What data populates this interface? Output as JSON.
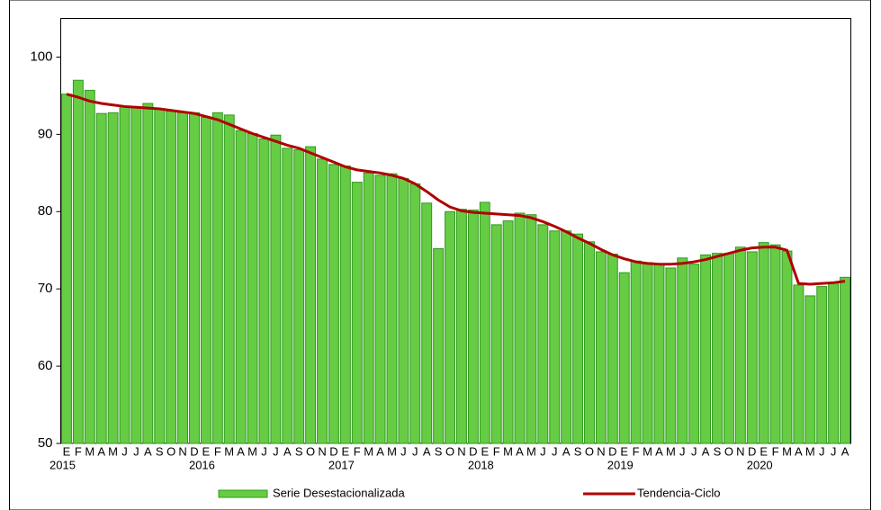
{
  "chart_data": {
    "type": "bar",
    "categories": [
      "E",
      "F",
      "M",
      "A",
      "M",
      "J",
      "J",
      "A",
      "S",
      "O",
      "N",
      "D",
      "E",
      "F",
      "M",
      "A",
      "M",
      "J",
      "J",
      "A",
      "S",
      "O",
      "N",
      "D",
      "E",
      "F",
      "M",
      "A",
      "M",
      "J",
      "J",
      "A",
      "S",
      "O",
      "N",
      "D",
      "E",
      "F",
      "M",
      "A",
      "M",
      "J",
      "J",
      "A",
      "S",
      "O",
      "N",
      "D",
      "E",
      "F",
      "M",
      "A",
      "M",
      "J",
      "J",
      "A",
      "S",
      "O",
      "N",
      "D",
      "E",
      "F",
      "M",
      "A",
      "M",
      "J",
      "J",
      "A"
    ],
    "year_labels": [
      "2015",
      "2016",
      "2017",
      "2018",
      "2019",
      "2020"
    ],
    "series": [
      {
        "name": "Serie Desestacionalizada",
        "type": "bar",
        "color": "#66cc44",
        "values": [
          95.2,
          97.0,
          95.7,
          92.7,
          92.8,
          93.6,
          93.5,
          94.0,
          93.3,
          93.0,
          92.8,
          92.8,
          92.2,
          92.8,
          92.5,
          90.5,
          90.1,
          89.4,
          89.9,
          88.2,
          88.0,
          88.4,
          86.8,
          86.1,
          85.9,
          83.8,
          85.0,
          84.7,
          84.9,
          84.3,
          83.6,
          81.1,
          75.2,
          80.0,
          80.3,
          80.2,
          81.2,
          78.3,
          78.8,
          79.8,
          79.6,
          78.3,
          77.5,
          77.5,
          77.1,
          76.1,
          74.8,
          74.5,
          72.1,
          73.6,
          73.4,
          73.2,
          72.7,
          74.0,
          73.2,
          74.4,
          74.6,
          74.6,
          75.4,
          74.8,
          76.0,
          75.7,
          74.9,
          70.5,
          69.1,
          70.3,
          70.8,
          71.5
        ]
      },
      {
        "name": "Tendencia-Ciclo",
        "type": "line",
        "color": "#b00000",
        "values": [
          95.2,
          94.8,
          94.3,
          94.0,
          93.8,
          93.6,
          93.5,
          93.4,
          93.3,
          93.1,
          92.9,
          92.7,
          92.3,
          91.9,
          91.3,
          90.7,
          90.1,
          89.6,
          89.1,
          88.6,
          88.2,
          87.6,
          87.0,
          86.4,
          85.8,
          85.4,
          85.2,
          85.0,
          84.7,
          84.3,
          83.6,
          82.6,
          81.5,
          80.6,
          80.1,
          79.9,
          79.8,
          79.7,
          79.6,
          79.5,
          79.2,
          78.7,
          78.1,
          77.4,
          76.6,
          75.9,
          75.1,
          74.4,
          73.9,
          73.5,
          73.3,
          73.2,
          73.2,
          73.3,
          73.5,
          73.8,
          74.2,
          74.6,
          75.0,
          75.3,
          75.4,
          75.4,
          75.0,
          70.7,
          70.6,
          70.7,
          70.8,
          71.0
        ]
      }
    ],
    "ylim": [
      50,
      105
    ],
    "yticks": [
      50,
      60,
      70,
      80,
      90,
      100
    ],
    "grid": false,
    "legend": "bottom"
  }
}
